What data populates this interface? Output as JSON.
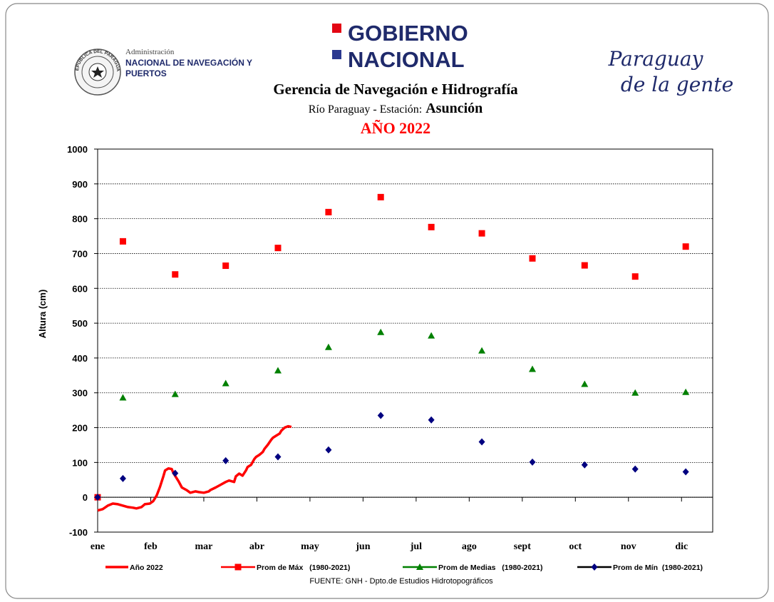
{
  "header": {
    "seal_text": "REPUBLICA DEL PARAGUAY",
    "agency_line1": "Administración",
    "agency_line2": "NACIONAL DE NAVEGACIÓN Y",
    "agency_line3": "PUERTOS",
    "gov_line1": "GOBIERNO",
    "gov_line2": "NACIONAL",
    "slogan_line1": "Paraguay",
    "slogan_line2": "de la gente"
  },
  "chart_data": {
    "type": "line",
    "title": "Gerencia de Navegación e Hidrografía",
    "subtitle": "Río Paraguay -  Estación:",
    "station": "Asunción",
    "year_title": "AÑO 2022",
    "ylabel": "Altura (cm)",
    "source": "FUENTE:  GNH - Dpto.de Estudios Hidrotopográficos",
    "xlim": [
      0,
      365
    ],
    "ylim": [
      -100,
      1000
    ],
    "xticks": [
      {
        "value": 0,
        "label": "ene"
      },
      {
        "value": 31.5,
        "label": "feb"
      },
      {
        "value": 63,
        "label": "mar"
      },
      {
        "value": 94.5,
        "label": "abr"
      },
      {
        "value": 126,
        "label": "may"
      },
      {
        "value": 157.5,
        "label": "jun"
      },
      {
        "value": 189,
        "label": "jul"
      },
      {
        "value": 220.5,
        "label": "ago"
      },
      {
        "value": 252,
        "label": "sept"
      },
      {
        "value": 283.5,
        "label": "oct"
      },
      {
        "value": 315,
        "label": "nov"
      },
      {
        "value": 346.5,
        "label": "dic"
      }
    ],
    "yticks": [
      -100,
      0,
      100,
      200,
      300,
      400,
      500,
      600,
      700,
      800,
      900,
      1000
    ],
    "grid": true,
    "series": [
      {
        "name": "Año 2022",
        "color": "#ff0000",
        "marker": "none",
        "x": [
          0,
          3,
          6,
          9,
          12,
          15,
          18,
          21,
          23,
          26,
          28,
          31,
          33,
          35,
          37,
          39,
          40,
          42,
          44,
          45,
          48,
          50,
          53,
          55,
          58,
          60,
          63,
          66,
          67,
          70,
          73,
          76,
          78,
          81,
          82,
          84,
          86,
          88,
          89,
          91,
          93,
          94,
          96,
          98,
          99,
          101,
          103,
          104,
          106,
          108,
          109,
          111,
          113,
          115
        ],
        "values": [
          -38,
          -34,
          -24,
          -18,
          -20,
          -24,
          -28,
          -30,
          -32,
          -28,
          -20,
          -18,
          -11,
          5,
          30,
          60,
          77,
          83,
          81,
          69,
          46,
          28,
          20,
          13,
          17,
          15,
          13,
          17,
          21,
          28,
          36,
          44,
          48,
          44,
          60,
          68,
          62,
          77,
          87,
          93,
          110,
          116,
          122,
          130,
          139,
          151,
          165,
          171,
          177,
          183,
          191,
          200,
          204,
          202
        ]
      },
      {
        "name": "Prom de Máx   (1980-2021)",
        "color": "#ff0000",
        "marker": "square",
        "x": [
          0,
          15,
          46,
          76,
          107,
          137,
          168,
          198,
          228,
          258,
          289,
          319,
          349
        ],
        "values": [
          0,
          735,
          640,
          665,
          716,
          819,
          862,
          776,
          758,
          686,
          666,
          634,
          720
        ]
      },
      {
        "name": "Prom de Medias   (1980-2021)",
        "color": "#008000",
        "marker": "triangle",
        "x": [
          15,
          46,
          76,
          107,
          137,
          168,
          198,
          228,
          258,
          289,
          319,
          349
        ],
        "values": [
          286,
          296,
          327,
          364,
          431,
          474,
          464,
          421,
          368,
          325,
          300,
          302
        ]
      },
      {
        "name": "Prom de Mín  (1980-2021)",
        "color": "#000080",
        "legend_line_color": "#000000",
        "marker": "diamond",
        "x": [
          0,
          15,
          46,
          76,
          107,
          137,
          168,
          198,
          228,
          258,
          289,
          319,
          349
        ],
        "values": [
          0,
          54,
          69,
          105,
          116,
          136,
          235,
          222,
          159,
          101,
          93,
          81,
          73
        ]
      }
    ]
  }
}
